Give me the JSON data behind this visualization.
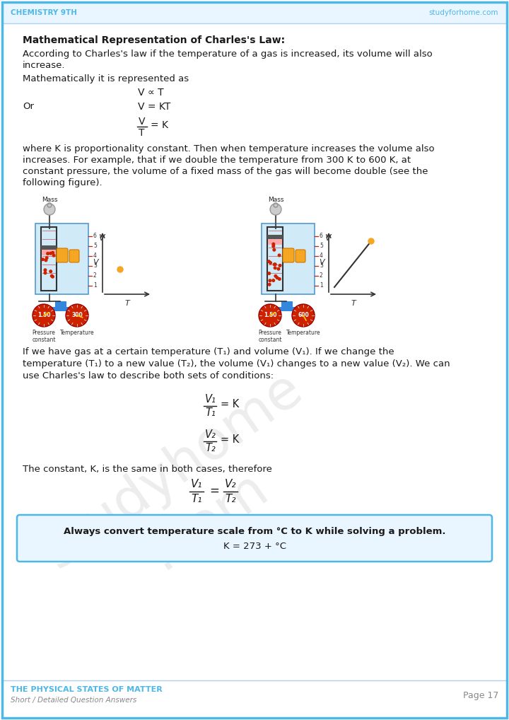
{
  "header_left": "CHEMISTRY 9TH",
  "header_right": "studyforhome.com",
  "footer_left_bold": "THE PHYSICAL STATES OF MATTER",
  "footer_left_sub": "Short / Detailed Question Answers",
  "footer_right": "Page 17",
  "bg_color": "#ffffff",
  "border_color": "#4db8e8",
  "header_color": "#4db8e8",
  "footer_bold_color": "#4db8e8",
  "footer_sub_color": "#888888",
  "text_color": "#1a1a1a",
  "title_bold": "Mathematical Representation of Charles's Law",
  "title_colon": ":",
  "box_bold": "Always convert temperature scale from °C to K while solving a problem.",
  "box_normal": "K = 273 + °C",
  "box_border_color": "#4db8e8",
  "box_bg_color": "#eaf6ff"
}
